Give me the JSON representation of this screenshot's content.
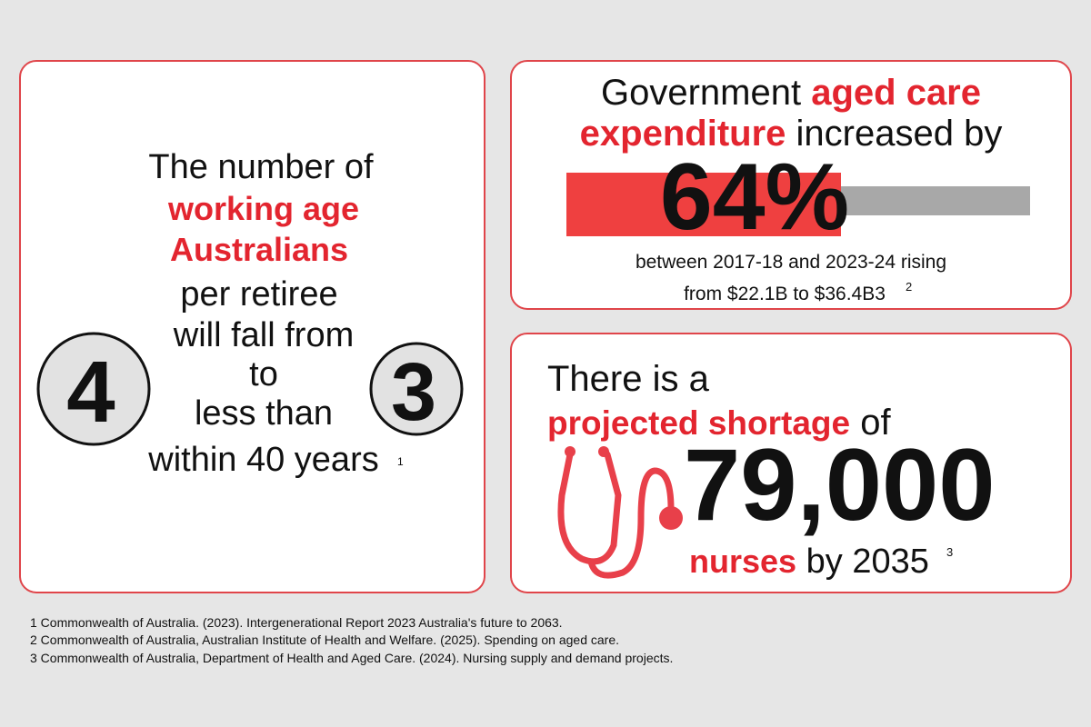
{
  "left_card": {
    "lines": [
      "The number of",
      "working age",
      "Australians",
      "per retiree",
      "will fall from",
      "to",
      "less than",
      "within 40 years"
    ],
    "note": "1",
    "from_number": "4",
    "to_number": "3"
  },
  "expenditure_card": {
    "line1": "Government",
    "highlight1": "aged care",
    "highlight2": "expenditure",
    "line2": "increased by",
    "big_figure": "64%",
    "detail1": "between 2017-18 and 2023-24 rising",
    "detail2": "from $22.1B to $36.4B3",
    "note": "2"
  },
  "shortage_card": {
    "line1": "There is a",
    "highlight": "projected shortage",
    "line2": "of",
    "big_figure": "79,000",
    "highlight2": "nurses",
    "line3": "by 2035",
    "note": "3"
  },
  "footnotes": [
    "1 Commonwealth of Australia. (2023). Intergenerational Report 2023 Australia's future to 2063.",
    "2 Commonwealth of Australia, Australian Institute of Health and Welfare. (2025). Spending on aged care.",
    "3 Commonwealth of Australia, Department of Health and Aged Care. (2024). Nursing supply and demand projects."
  ]
}
